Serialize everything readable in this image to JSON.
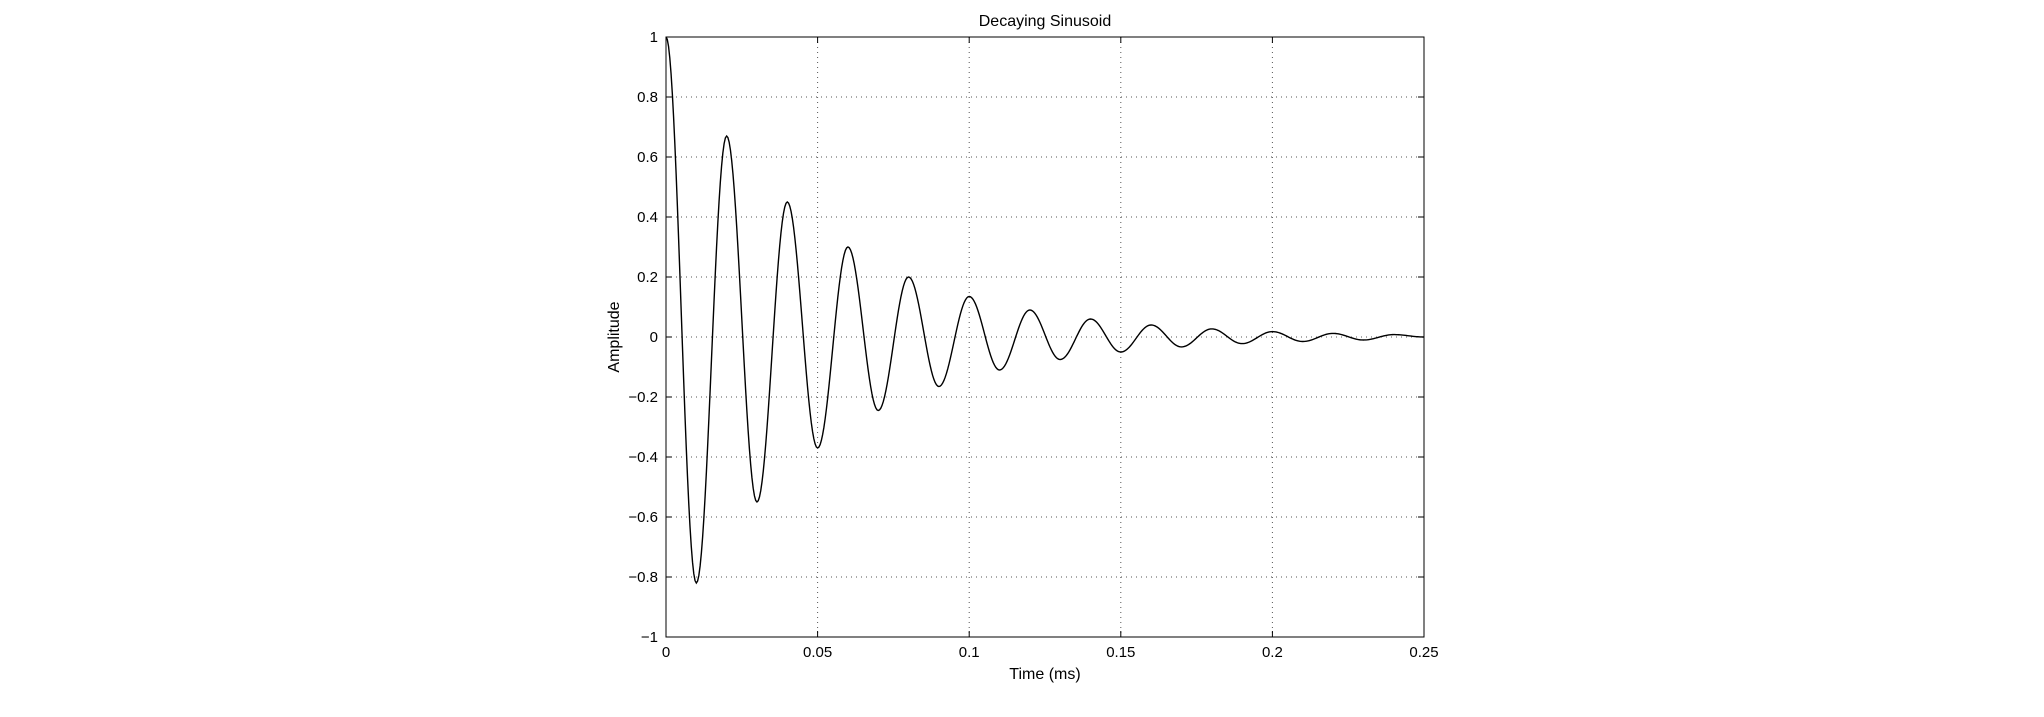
{
  "chart_data": {
    "type": "line",
    "title": "Decaying Sinusoid",
    "xlabel": "Time (ms)",
    "ylabel": "Amplitude",
    "xlim": [
      0,
      0.25
    ],
    "ylim": [
      -1,
      1
    ],
    "grid": true,
    "x_ticks": [
      0,
      0.05,
      0.1,
      0.15,
      0.2,
      0.25
    ],
    "x_tick_labels": [
      "0",
      "0.05",
      "0.1",
      "0.15",
      "0.2",
      "0.25"
    ],
    "y_ticks": [
      -1,
      -0.8,
      -0.6,
      -0.4,
      -0.2,
      0,
      0.2,
      0.4,
      0.6,
      0.8,
      1
    ],
    "y_tick_labels": [
      "−1",
      "−0.8",
      "−0.6",
      "−0.4",
      "−0.2",
      "0",
      "0.2",
      "0.4",
      "0.6",
      "0.8",
      "1"
    ],
    "line_color": "#000000",
    "series": [
      {
        "x": [
          0,
          0.01,
          0.02,
          0.03,
          0.04,
          0.05,
          0.06,
          0.07,
          0.08,
          0.09,
          0.1,
          0.11,
          0.12,
          0.13,
          0.14,
          0.15,
          0.16,
          0.17,
          0.18,
          0.19,
          0.2,
          0.21,
          0.22,
          0.23,
          0.24,
          0.25
        ],
        "values": [
          1,
          -0.82,
          0.67,
          -0.55,
          0.45,
          -0.37,
          0.3,
          -0.245,
          0.2,
          -0.165,
          0.135,
          -0.11,
          0.09,
          -0.075,
          0.06,
          -0.05,
          0.04,
          -0.033,
          0.027,
          -0.022,
          0.018,
          -0.015,
          0.012,
          -0.01,
          0.008,
          0
        ]
      }
    ]
  }
}
